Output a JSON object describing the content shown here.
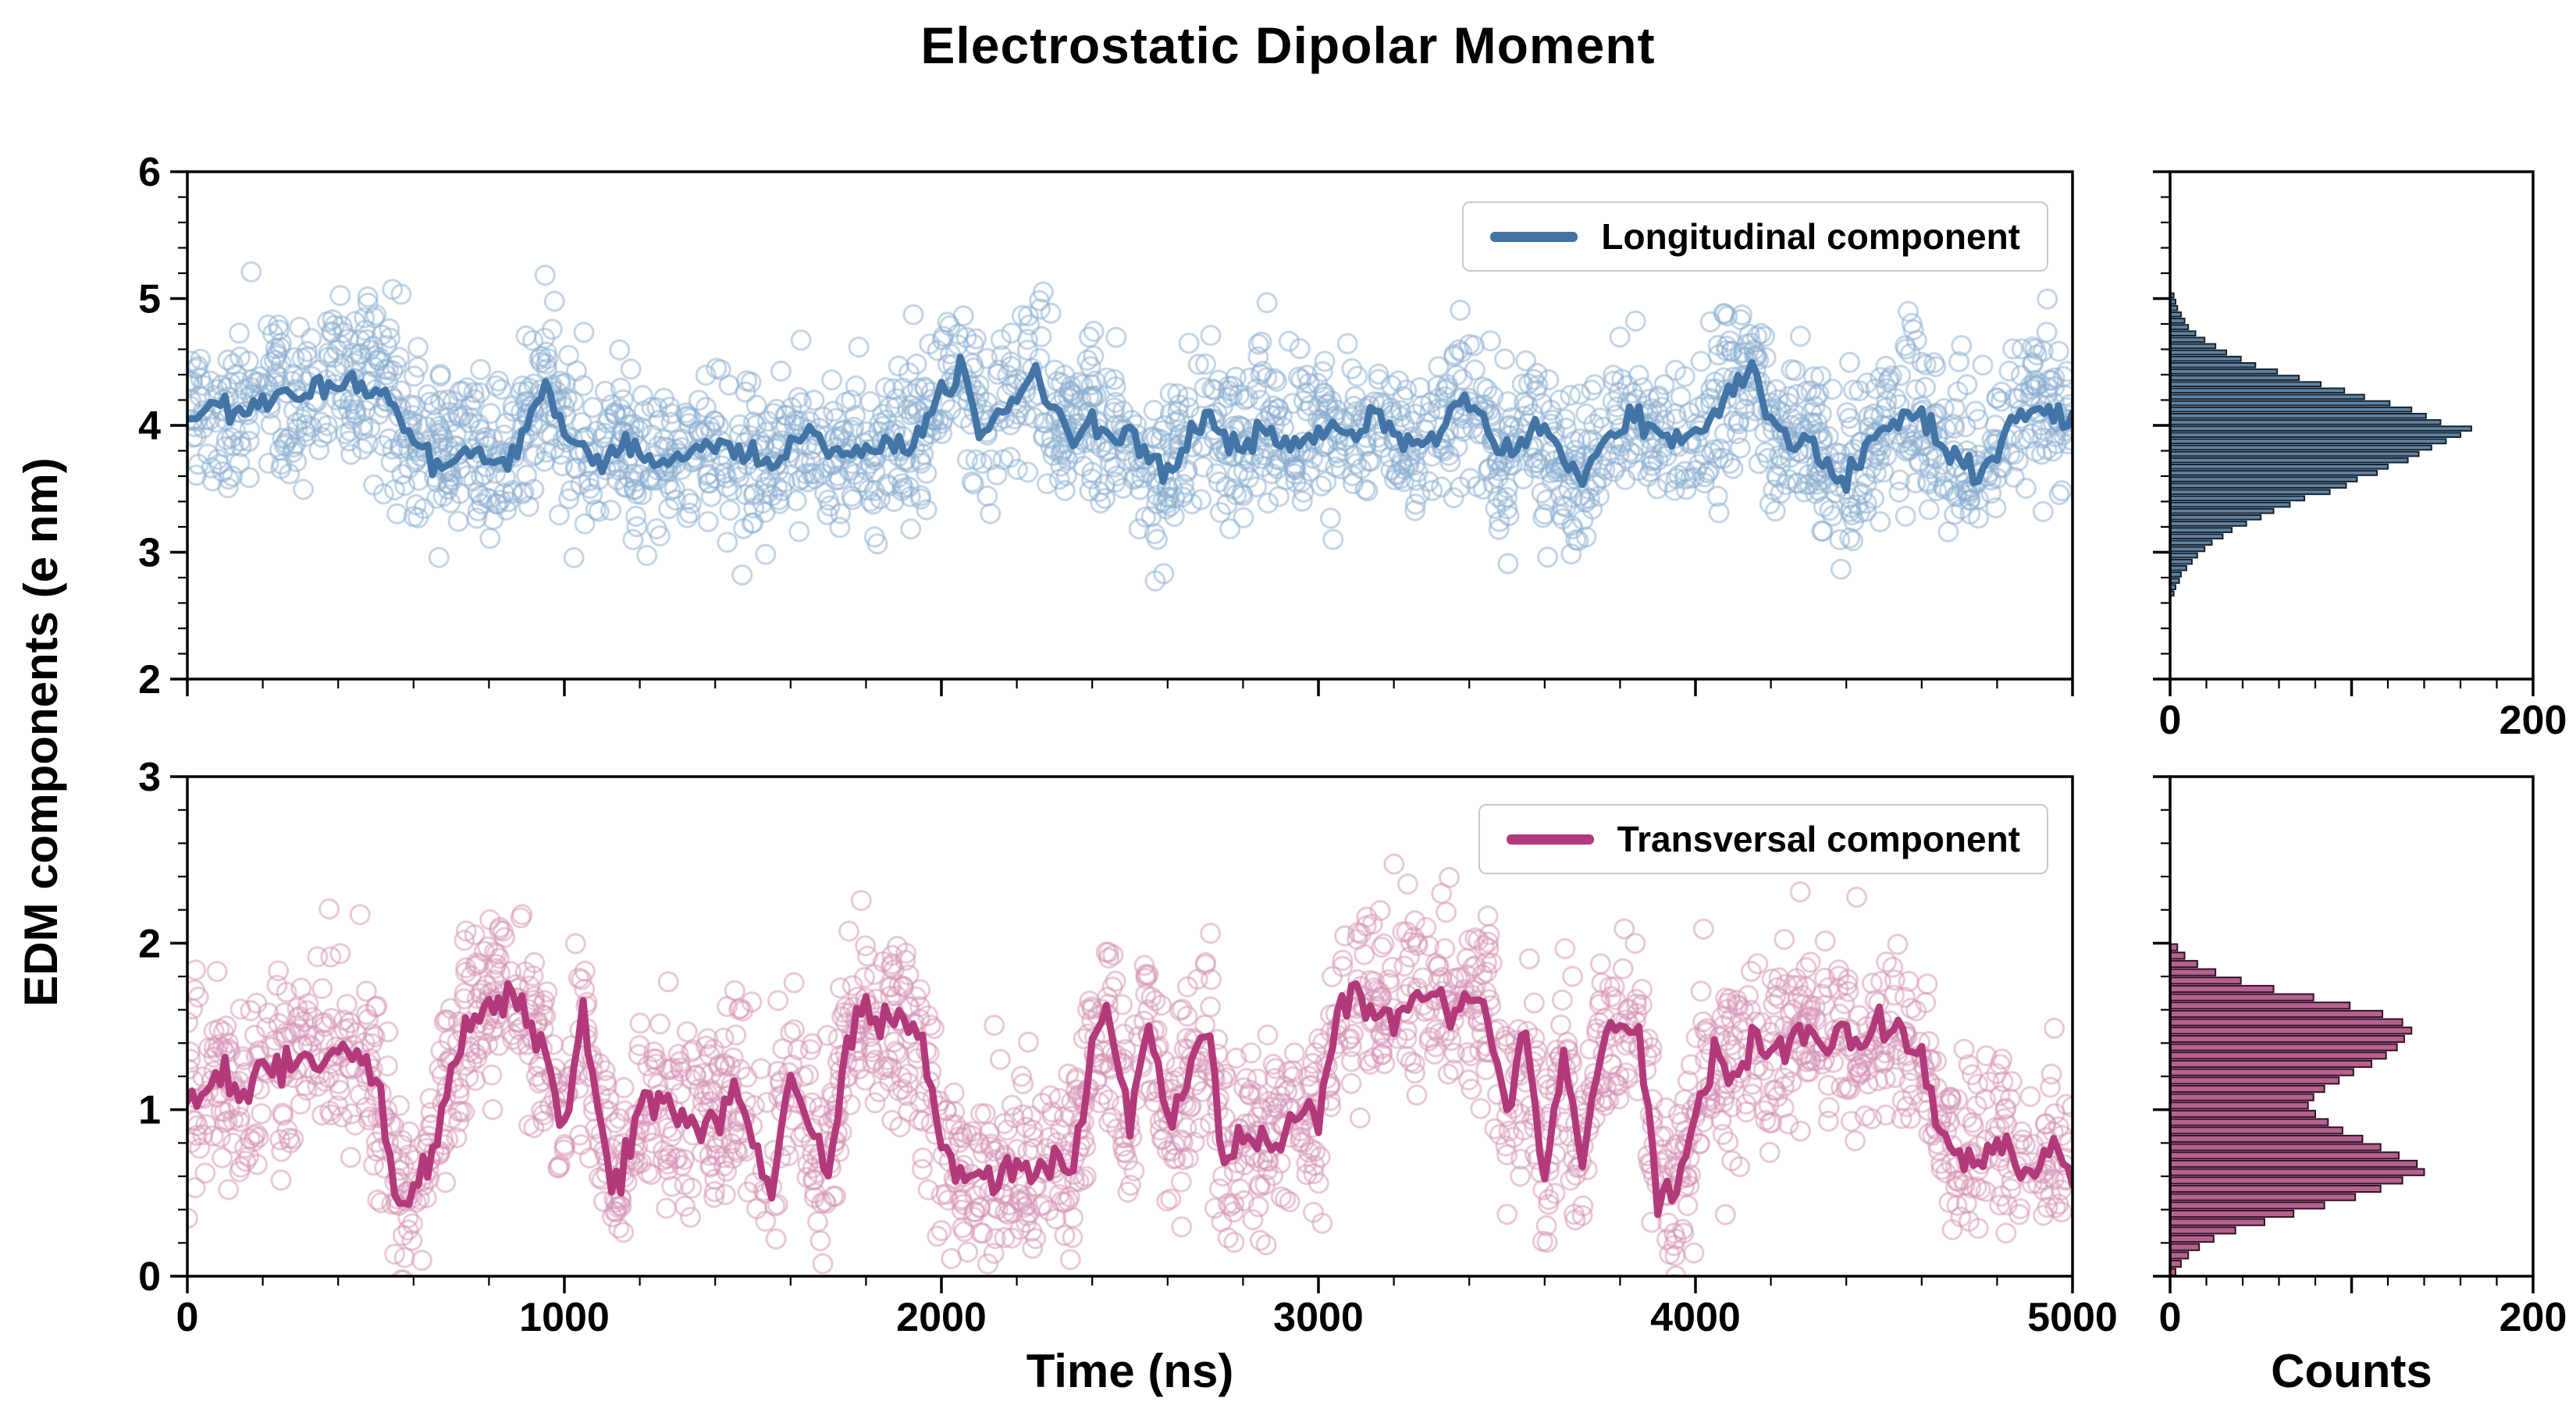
{
  "title": "Electrostatic Dipolar Moment",
  "ylabel": "EDM components (e nm)",
  "xlabel_time": "Time (ns)",
  "xlabel_counts": "Counts",
  "legend": {
    "top": "Longitudinal component",
    "bottom": "Transversal component"
  },
  "colors": {
    "longitudinal_line": "#4374a6",
    "longitudinal_marker": "#8aaed0",
    "longitudinal_hist_fill": "#5d83a4",
    "longitudinal_hist_edge": "#16222e",
    "transversal_line": "#b23a7b",
    "transversal_marker": "#d694b6",
    "transversal_hist_fill": "#b5628e",
    "transversal_hist_edge": "#351026",
    "axis": "#000000"
  },
  "chart_data": [
    {
      "id": "longitudinal-timeseries",
      "type": "scatter+line",
      "panel": "top-left",
      "xlim": [
        0,
        5000
      ],
      "ylim": [
        2,
        6
      ],
      "xticks": [
        0,
        1000,
        2000,
        3000,
        4000,
        5000
      ],
      "yticks": [
        2,
        3,
        4,
        5,
        6
      ],
      "x_minor_step": 200,
      "y_minor_step": 0.2,
      "show_x_ticklabels": false,
      "show_y_ticklabels": true,
      "legend_label": "Longitudinal component",
      "marker": {
        "name": "Longitudinal raw samples",
        "shape": "open-circle",
        "n": 2200,
        "noise_sd": 0.32,
        "seed": 11,
        "color_key": "longitudinal_marker"
      },
      "line": {
        "name": "Longitudinal running mean",
        "x_start": 0,
        "x_stop": 5000,
        "jitter": 0.05,
        "seed": 12,
        "color_key": "longitudinal_line",
        "y": [
          4.05,
          4.1,
          4.15,
          4.05,
          4.2,
          4.3,
          4.25,
          4.3,
          4.35,
          4.25,
          4.3,
          4.15,
          3.9,
          3.75,
          3.7,
          3.8,
          3.7,
          3.75,
          4.0,
          4.35,
          3.95,
          3.8,
          3.75,
          3.85,
          3.8,
          3.7,
          3.75,
          3.8,
          3.85,
          3.75,
          3.8,
          3.7,
          3.8,
          3.9,
          3.85,
          3.8,
          3.75,
          3.85,
          3.8,
          3.9,
          4.3,
          4.5,
          3.95,
          4.1,
          4.2,
          4.45,
          4.15,
          3.9,
          4.05,
          3.85,
          3.95,
          3.7,
          3.65,
          3.9,
          4.1,
          3.85,
          3.8,
          3.95,
          3.9,
          3.85,
          3.95,
          4.0,
          3.9,
          4.05,
          3.95,
          3.85,
          3.9,
          4.1,
          4.25,
          3.9,
          3.75,
          3.9,
          4.0,
          3.7,
          3.6,
          3.85,
          3.95,
          4.1,
          3.9,
          3.85,
          3.9,
          4.1,
          4.3,
          4.45,
          4.0,
          3.85,
          3.9,
          3.7,
          3.55,
          3.8,
          3.95,
          4.05,
          4.1,
          3.85,
          3.7,
          3.6,
          3.8,
          4.0,
          4.15,
          4.05,
          4.1
        ]
      }
    },
    {
      "id": "longitudinal-histogram",
      "type": "histogram",
      "panel": "top-right",
      "orientation": "horizontal",
      "xlim": [
        0,
        200
      ],
      "ylim": [
        2,
        6
      ],
      "xticks": [
        0,
        100,
        200
      ],
      "xticklabels": [
        "0",
        "",
        "200"
      ],
      "yticks": [
        2,
        3,
        4,
        5,
        6
      ],
      "x_minor_step": 20,
      "y_minor_step": 0.2,
      "show_y_ticklabels": false,
      "bin_start": 2.65,
      "bin_width": 0.05,
      "counts": [
        2,
        3,
        5,
        6,
        9,
        12,
        15,
        19,
        23,
        29,
        34,
        42,
        50,
        57,
        66,
        74,
        88,
        97,
        103,
        114,
        120,
        131,
        137,
        144,
        152,
        160,
        166,
        149,
        141,
        133,
        121,
        107,
        96,
        83,
        71,
        59,
        47,
        39,
        31,
        25,
        19,
        14,
        10,
        8,
        6,
        4,
        3,
        2
      ],
      "fill_key": "longitudinal_hist_fill",
      "edge_key": "longitudinal_hist_edge"
    },
    {
      "id": "transversal-timeseries",
      "type": "scatter+line",
      "panel": "bottom-left",
      "xlim": [
        0,
        5000
      ],
      "ylim": [
        0,
        3
      ],
      "xticks": [
        0,
        1000,
        2000,
        3000,
        4000,
        5000
      ],
      "yticks": [
        0,
        1,
        2,
        3
      ],
      "x_minor_step": 200,
      "y_minor_step": 0.2,
      "show_x_ticklabels": true,
      "show_y_ticklabels": true,
      "legend_label": "Transversal component",
      "marker": {
        "name": "Transversal raw samples",
        "shape": "open-circle",
        "n": 2200,
        "noise_sd": 0.28,
        "seed": 21,
        "color_key": "transversal_marker"
      },
      "line": {
        "name": "Transversal running mean",
        "x_start": 0,
        "x_stop": 5000,
        "jitter": 0.06,
        "seed": 22,
        "color_key": "transversal_line",
        "y": [
          1.05,
          1.15,
          1.2,
          1.1,
          1.25,
          1.2,
          1.35,
          1.3,
          1.4,
          1.35,
          1.2,
          0.5,
          0.45,
          0.7,
          1.2,
          1.6,
          1.65,
          1.7,
          1.55,
          1.35,
          0.85,
          1.65,
          0.8,
          0.6,
          1.0,
          1.1,
          0.85,
          1.0,
          0.9,
          1.1,
          0.8,
          0.5,
          1.25,
          0.9,
          0.6,
          1.45,
          1.55,
          1.6,
          1.5,
          1.4,
          0.75,
          0.6,
          0.55,
          0.6,
          0.65,
          0.6,
          0.7,
          0.65,
          1.4,
          1.5,
          0.9,
          1.55,
          0.85,
          1.2,
          1.5,
          0.7,
          0.9,
          0.8,
          0.85,
          1.0,
          0.9,
          1.55,
          1.65,
          1.6,
          1.55,
          1.65,
          1.7,
          1.55,
          1.65,
          1.6,
          0.95,
          1.45,
          0.6,
          1.35,
          0.7,
          1.4,
          1.5,
          1.45,
          0.55,
          0.5,
          1.0,
          1.35,
          1.15,
          1.4,
          1.3,
          1.45,
          1.5,
          1.4,
          1.55,
          1.35,
          1.5,
          1.45,
          1.3,
          0.85,
          0.7,
          0.65,
          0.8,
          0.7,
          0.6,
          0.75,
          0.55
        ]
      }
    },
    {
      "id": "transversal-histogram",
      "type": "histogram",
      "panel": "bottom-right",
      "orientation": "horizontal",
      "xlim": [
        0,
        200
      ],
      "ylim": [
        0,
        3
      ],
      "xticks": [
        0,
        100,
        200
      ],
      "xticklabels": [
        "0",
        "",
        "200"
      ],
      "yticks": [
        0,
        1,
        2,
        3
      ],
      "x_minor_step": 20,
      "y_minor_step": 0.2,
      "show_y_ticklabels": false,
      "bin_start": 0.0,
      "bin_width": 0.05,
      "counts": [
        3,
        6,
        10,
        16,
        24,
        36,
        52,
        68,
        85,
        102,
        116,
        128,
        140,
        136,
        126,
        116,
        106,
        95,
        87,
        80,
        76,
        79,
        85,
        93,
        101,
        111,
        119,
        125,
        129,
        133,
        128,
        117,
        99,
        79,
        57,
        39,
        25,
        15,
        8,
        4
      ],
      "fill_key": "transversal_hist_fill",
      "edge_key": "transversal_hist_edge"
    }
  ]
}
